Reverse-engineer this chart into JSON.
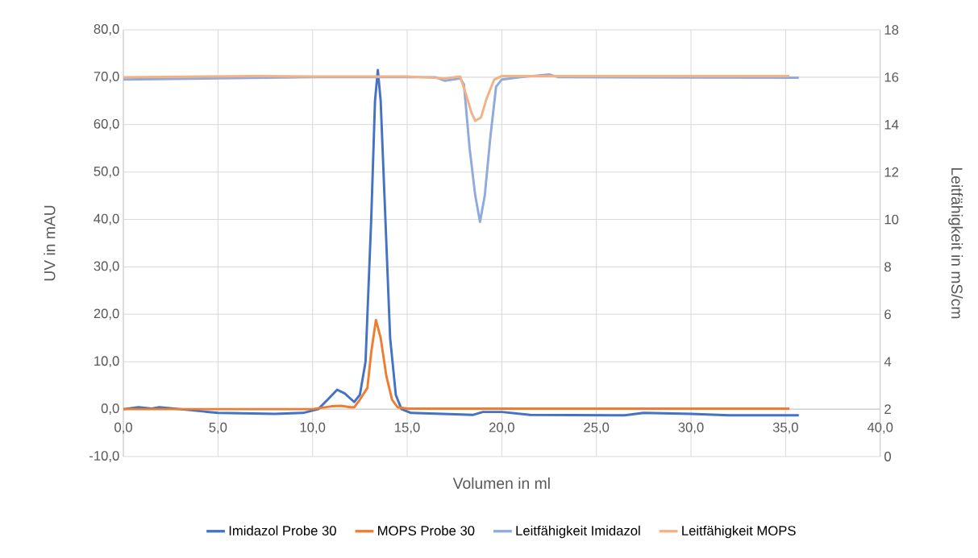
{
  "chart_data": {
    "type": "line",
    "xlabel": "Volumen in ml",
    "ylabel": "UV in mAU",
    "y2label": "Leitfähigkeit in mS/cm",
    "xlim": [
      0,
      40
    ],
    "ylim": [
      -10,
      80
    ],
    "y2lim": [
      0,
      18
    ],
    "xticks": [
      {
        "value": 0,
        "label": "0,0"
      },
      {
        "value": 5,
        "label": "5,0"
      },
      {
        "value": 10,
        "label": "10,0"
      },
      {
        "value": 15,
        "label": "15,0"
      },
      {
        "value": 20,
        "label": "20,0"
      },
      {
        "value": 25,
        "label": "25,0"
      },
      {
        "value": 30,
        "label": "30,0"
      },
      {
        "value": 35,
        "label": "35,0"
      },
      {
        "value": 40,
        "label": "40,0"
      }
    ],
    "yticks": [
      {
        "value": -10,
        "label": "-10,0"
      },
      {
        "value": 0,
        "label": "0,0"
      },
      {
        "value": 10,
        "label": "10,0"
      },
      {
        "value": 20,
        "label": "20,0"
      },
      {
        "value": 30,
        "label": "30,0"
      },
      {
        "value": 40,
        "label": "40,0"
      },
      {
        "value": 50,
        "label": "50,0"
      },
      {
        "value": 60,
        "label": "60,0"
      },
      {
        "value": 70,
        "label": "70,0"
      },
      {
        "value": 80,
        "label": "80,0"
      }
    ],
    "y2ticks": [
      0,
      2,
      4,
      6,
      8,
      10,
      12,
      14,
      16,
      18
    ],
    "grid": true,
    "legend": "bottom",
    "series": [
      {
        "name": "Imidazol Probe 30",
        "color": "#4472c4",
        "x": [
          0,
          0.8,
          1.5,
          1.9,
          3,
          5,
          8,
          9.5,
          10.3,
          10.8,
          11.3,
          11.7,
          12.2,
          12.5,
          12.8,
          13.1,
          13.3,
          13.45,
          13.6,
          13.8,
          14.1,
          14.4,
          14.7,
          15.2,
          18.5,
          19,
          20,
          21.5,
          26.5,
          27.5,
          30,
          32,
          35.7
        ],
        "values": [
          0,
          0.4,
          0.1,
          0.4,
          0,
          -0.8,
          -1,
          -0.8,
          0,
          2,
          4.1,
          3.3,
          1.5,
          3,
          10,
          40,
          65,
          71.5,
          65,
          45,
          15,
          3,
          0,
          -0.8,
          -1.2,
          -0.6,
          -0.6,
          -1.2,
          -1.3,
          -0.8,
          -1,
          -1.3,
          -1.3
        ]
      },
      {
        "name": "MOPS Probe 30",
        "color": "#ed7d31",
        "x": [
          0,
          10,
          11,
          11.5,
          12,
          12.2,
          12.5,
          12.9,
          13.1,
          13.35,
          13.6,
          13.9,
          14.2,
          14.5,
          15,
          35.2
        ],
        "values": [
          0,
          0,
          0.6,
          0.7,
          0.4,
          0.4,
          2,
          4.5,
          12,
          18.8,
          15,
          7,
          2,
          0.4,
          0.1,
          0.1
        ]
      },
      {
        "name": "Leitfähigkeit Imidazol",
        "color": "#8faadc",
        "axis": "y2",
        "x": [
          0,
          5,
          10,
          13,
          15,
          16.5,
          17,
          17.8,
          18,
          18.3,
          18.6,
          18.85,
          19.1,
          19.4,
          19.7,
          20,
          21,
          22.5,
          23,
          35.7
        ],
        "values": [
          15.9,
          15.95,
          16,
          16,
          16,
          16,
          15.85,
          15.95,
          15.7,
          13,
          11,
          9.9,
          11,
          13.5,
          15.6,
          15.9,
          16,
          16.12,
          16,
          15.98
        ]
      },
      {
        "name": "Leitfähigkeit MOPS",
        "color": "#f4b183",
        "axis": "y2",
        "x": [
          0,
          7,
          10,
          15,
          17,
          17.8,
          18.1,
          18.4,
          18.6,
          18.9,
          19.2,
          19.6,
          20,
          35.2
        ],
        "values": [
          16,
          16.05,
          16.03,
          16.03,
          15.95,
          16.03,
          15.3,
          14.5,
          14.16,
          14.3,
          15.1,
          15.9,
          16.05,
          16.05
        ]
      }
    ]
  }
}
